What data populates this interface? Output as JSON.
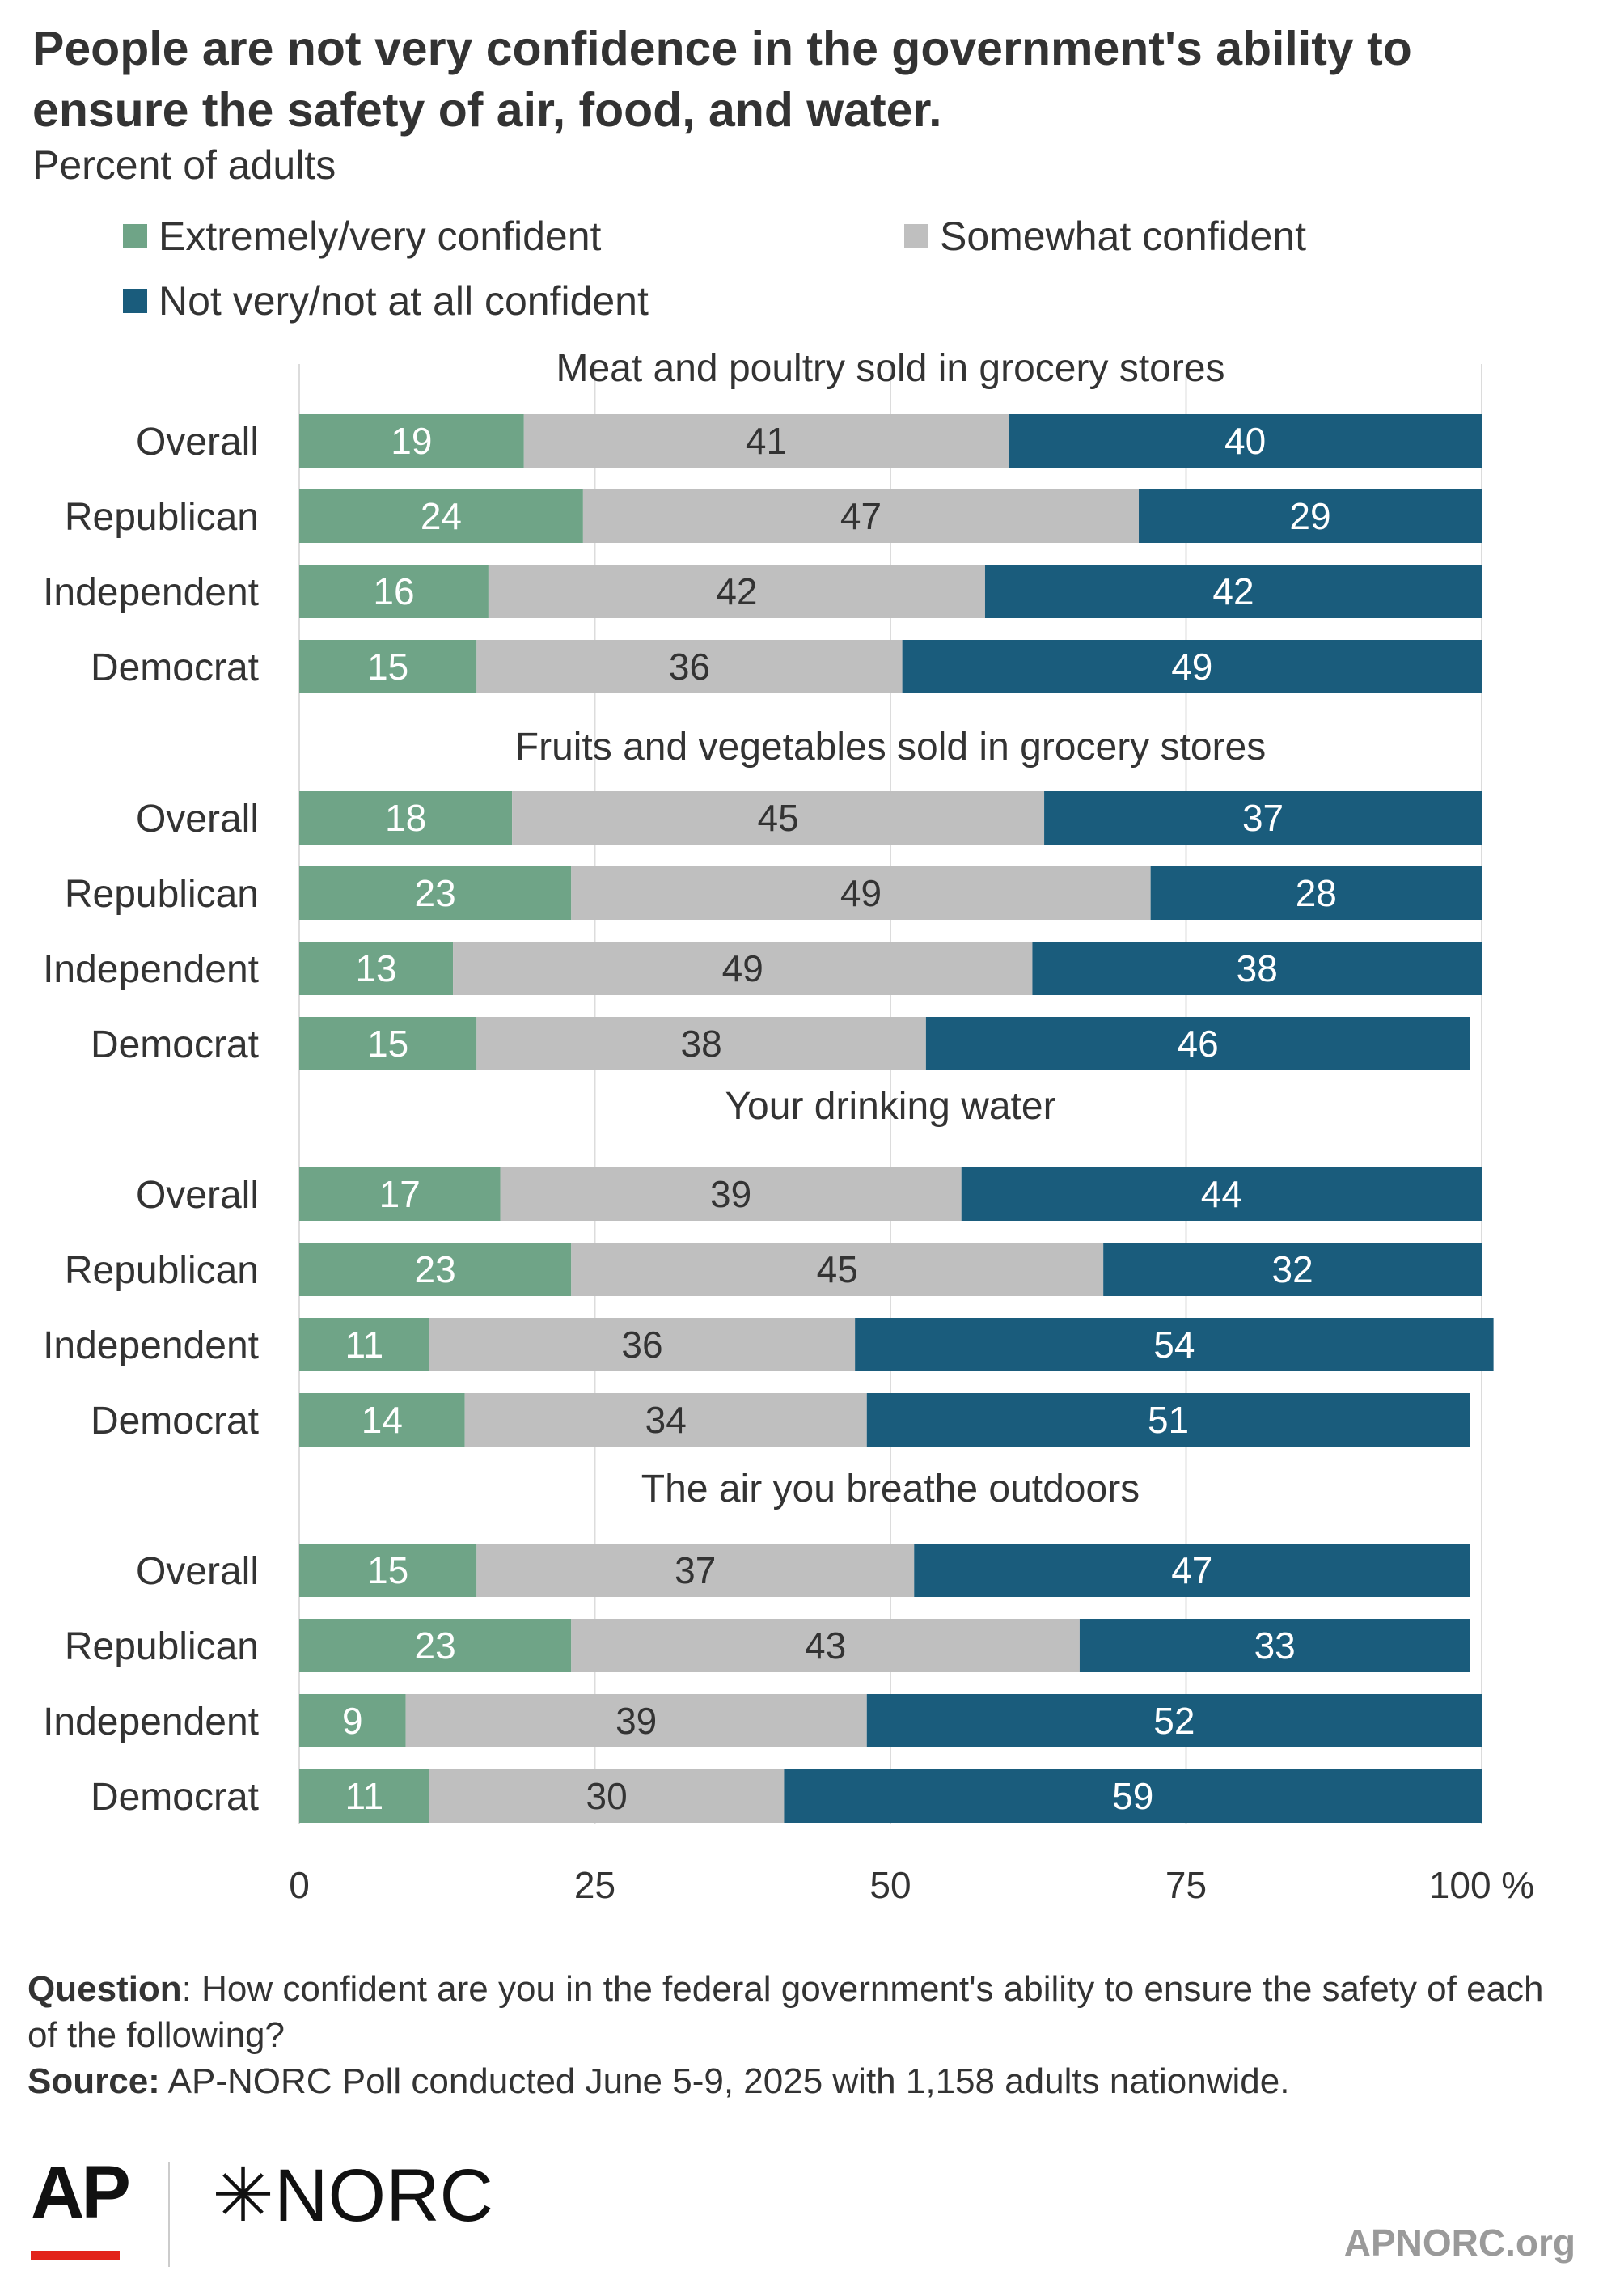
{
  "header": {
    "title": "People are not very confidence in the government's ability to ensure the safety of air, food, and water.",
    "subtitle": "Percent of adults"
  },
  "legend": [
    {
      "label": "Extremely/very confident",
      "color": "#6fa487"
    },
    {
      "label": "Somewhat confident",
      "color": "#bfbfbf"
    },
    {
      "label": "Not very/not at all confident",
      "color": "#1a5c7c"
    }
  ],
  "chart_data": {
    "type": "bar",
    "orientation": "horizontal",
    "stacked": true,
    "xlim": [
      0,
      100
    ],
    "x_ticks": [
      0,
      25,
      50,
      75,
      100
    ],
    "x_tick_labels": [
      "0",
      "25",
      "50",
      "75",
      "100 %"
    ],
    "grid": true,
    "legend_position": "top",
    "series_names": [
      "Extremely/very confident",
      "Somewhat confident",
      "Not very/not at all confident"
    ],
    "colors": [
      "#6fa487",
      "#bfbfbf",
      "#1a5c7c"
    ],
    "groups": [
      {
        "title": "Meat and poultry sold in grocery stores",
        "rows": [
          {
            "label": "Overall",
            "values": [
              19,
              41,
              40
            ]
          },
          {
            "label": "Republican",
            "values": [
              24,
              47,
              29
            ]
          },
          {
            "label": "Independent",
            "values": [
              16,
              42,
              42
            ]
          },
          {
            "label": "Democrat",
            "values": [
              15,
              36,
              49
            ]
          }
        ]
      },
      {
        "title": "Fruits and vegetables sold in grocery stores",
        "rows": [
          {
            "label": "Overall",
            "values": [
              18,
              45,
              37
            ]
          },
          {
            "label": "Republican",
            "values": [
              23,
              49,
              28
            ]
          },
          {
            "label": "Independent",
            "values": [
              13,
              49,
              38
            ]
          },
          {
            "label": "Democrat",
            "values": [
              15,
              38,
              46
            ]
          }
        ]
      },
      {
        "title": "Your drinking water",
        "rows": [
          {
            "label": "Overall",
            "values": [
              17,
              39,
              44
            ]
          },
          {
            "label": "Republican",
            "values": [
              23,
              45,
              32
            ]
          },
          {
            "label": "Independent",
            "values": [
              11,
              36,
              54
            ]
          },
          {
            "label": "Democrat",
            "values": [
              14,
              34,
              51
            ]
          }
        ]
      },
      {
        "title": "The air you breathe outdoors",
        "rows": [
          {
            "label": "Overall",
            "values": [
              15,
              37,
              47
            ]
          },
          {
            "label": "Republican",
            "values": [
              23,
              43,
              33
            ]
          },
          {
            "label": "Independent",
            "values": [
              9,
              39,
              52
            ]
          },
          {
            "label": "Democrat",
            "values": [
              11,
              30,
              59
            ]
          }
        ]
      }
    ]
  },
  "footer": {
    "question_label": "Question",
    "question_text": ": How confident are you in the federal government's ability to ensure the safety of each of the following?",
    "source_label": "Source:",
    "source_text": " AP-NORC Poll conducted June 5-9, 2025 with 1,158 adults nationwide."
  },
  "logos": {
    "ap": "AP",
    "norc": "✳NORC",
    "site": "APNORC.org"
  }
}
